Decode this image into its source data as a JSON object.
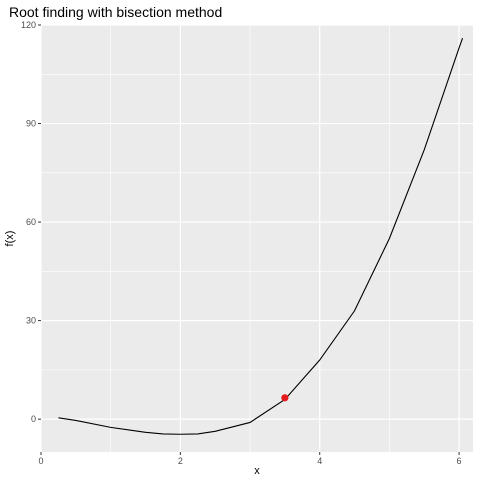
{
  "chart_data": {
    "type": "line",
    "title": "Root finding with bisection method",
    "xlabel": "x",
    "ylabel": "f(x)",
    "xlim": [
      0,
      6.2
    ],
    "ylim": [
      -10,
      120
    ],
    "x_ticks": [
      0,
      2,
      4,
      6
    ],
    "y_ticks": [
      0,
      30,
      60,
      90,
      120
    ],
    "grid": true,
    "background": "#ebebeb",
    "grid_color": "#ffffff",
    "line_color": "#000000",
    "point_color": "#e41a1c",
    "series": [
      {
        "x": [
          0.25,
          0.5,
          1.0,
          1.5,
          1.75,
          2.0,
          2.25,
          2.5,
          3.0,
          3.5,
          4.0,
          4.5,
          5.0,
          5.5,
          6.0,
          6.05
        ],
        "y": [
          0.4,
          -0.4,
          -2.5,
          -4.0,
          -4.5,
          -4.6,
          -4.5,
          -3.7,
          -1.0,
          6.0,
          18.0,
          33.0,
          55.0,
          82.0,
          113.0,
          116.0
        ]
      }
    ],
    "points": [
      {
        "x": 3.5,
        "y": 6.5
      }
    ]
  }
}
